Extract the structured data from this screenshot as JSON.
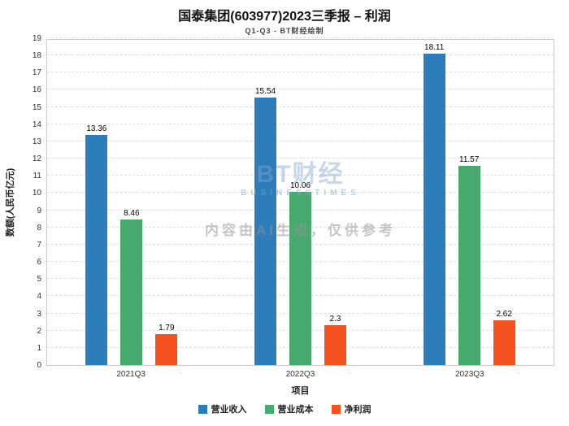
{
  "chart_data": {
    "type": "bar",
    "title": "国泰集团(603977)2023三季报 – 利润",
    "subtitle": "Q1-Q3 - BT财经绘制",
    "xlabel": "项目",
    "ylabel": "数额(人民币亿元)",
    "categories": [
      "2021Q3",
      "2022Q3",
      "2023Q3"
    ],
    "series": [
      {
        "name": "营业收入",
        "color": "#2d7dbb",
        "values": [
          13.36,
          15.54,
          18.11
        ]
      },
      {
        "name": "营业成本",
        "color": "#47a96e",
        "values": [
          8.46,
          10.06,
          11.57
        ]
      },
      {
        "name": "净利润",
        "color": "#f4521e",
        "values": [
          1.79,
          2.3,
          2.62
        ]
      }
    ],
    "ylim": [
      0,
      19
    ],
    "ytick_step": 1,
    "grid": true,
    "legend_position": "bottom",
    "watermark": {
      "brand": "BT财经",
      "brand_sub": "BUSINESSTIMES",
      "disclaimer": "内容由AI生成，仅供参考"
    }
  }
}
